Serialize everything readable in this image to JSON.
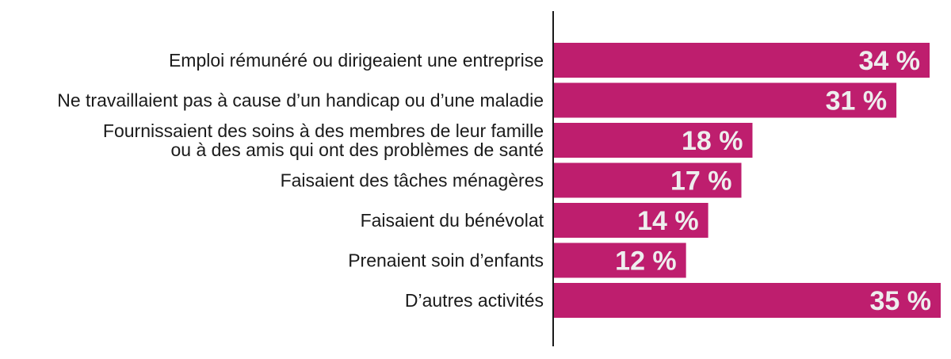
{
  "chart_data": {
    "type": "bar",
    "orientation": "horizontal",
    "categories": [
      [
        "Emploi rémunéré ou dirigeaient une entreprise"
      ],
      [
        "Ne travaillaient pas à cause d’un handicap ou d’une maladie"
      ],
      [
        "Fournissaient des soins à des membres de leur famille",
        "ou à des amis qui ont des problèmes de santé"
      ],
      [
        "Faisaient des tâches ménagères"
      ],
      [
        "Faisaient du bénévolat"
      ],
      [
        "Prenaient soin d’enfants"
      ],
      [
        "D’autres activités"
      ]
    ],
    "values": [
      34,
      31,
      18,
      17,
      14,
      12,
      35
    ],
    "value_labels": [
      "34 %",
      "31 %",
      "18 %",
      "17 %",
      "14 %",
      "12 %",
      "35 %"
    ],
    "unit": "%",
    "xlim": [
      0,
      35
    ],
    "grid": false,
    "legend": "none",
    "colors": {
      "bar": "#be1e6e",
      "value_text": "#eeeeee",
      "category_text": "#1a1a1a",
      "axis": "#1a1a1a"
    }
  }
}
